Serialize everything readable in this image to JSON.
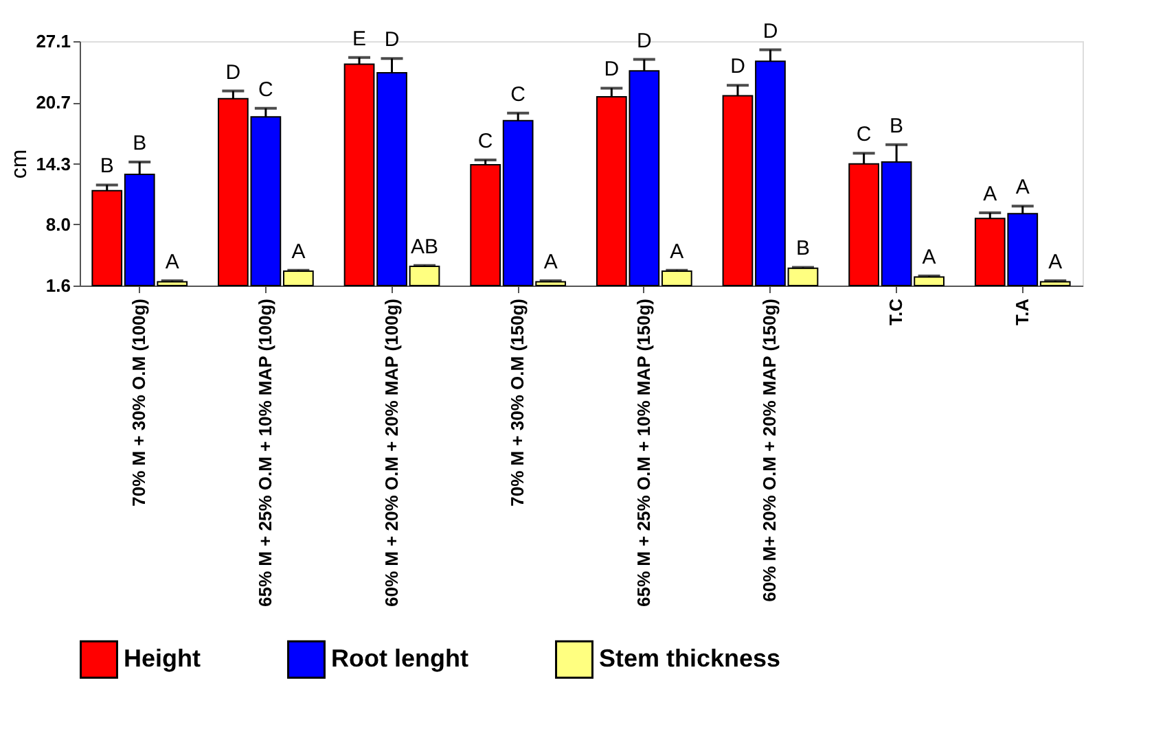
{
  "chart_data": {
    "type": "bar",
    "ylabel": "cm",
    "categories": [
      "70% M + 30% O.M (100g)",
      "65% M + 25% O.M + 10% MAP (100g)",
      "60% M + 20% O.M + 20% MAP (100g)",
      "70% M + 30% O.M (150g)",
      "65%  M + 25% O.M + 10% MAP (150g)",
      "60% M+ 20% O.M + 20% MAP (150g)",
      "T.C",
      "T.A"
    ],
    "series": [
      {
        "name": "Height",
        "color": "#ff0000",
        "values": [
          11.5,
          21.1,
          24.7,
          14.2,
          21.3,
          21.4,
          14.3,
          8.6
        ],
        "errors": [
          0.6,
          0.8,
          0.7,
          0.5,
          0.9,
          1.1,
          1.1,
          0.6
        ],
        "value_labels": [
          "B",
          "D",
          "E",
          "C",
          "D",
          "D",
          "C",
          "A"
        ]
      },
      {
        "name": "Root lenght",
        "color": "#0000ff",
        "values": [
          13.2,
          19.2,
          23.8,
          18.8,
          24.0,
          25.0,
          14.5,
          9.1
        ],
        "errors": [
          1.3,
          0.9,
          1.5,
          0.8,
          1.2,
          1.2,
          1.8,
          0.8
        ],
        "value_labels": [
          "B",
          "C",
          "D",
          "C",
          "D",
          "D",
          "B",
          "A"
        ]
      },
      {
        "name": "Stem thickness",
        "color": "#ffff80",
        "values": [
          2.0,
          3.1,
          3.6,
          2.0,
          3.1,
          3.4,
          2.5,
          2.0
        ],
        "errors": [
          0.1,
          0.1,
          0.1,
          0.1,
          0.1,
          0.1,
          0.1,
          0.1
        ],
        "value_labels": [
          "A",
          "A",
          "AB",
          "A",
          "A",
          "B",
          "A",
          "A"
        ]
      }
    ],
    "ylim": [
      1.6,
      27.1
    ],
    "yticks": [
      1.6,
      {
        "value": 8.0,
        "label": "8.0"
      },
      14.3,
      20.7,
      27.1
    ],
    "grid": false,
    "legend": "bottom"
  }
}
